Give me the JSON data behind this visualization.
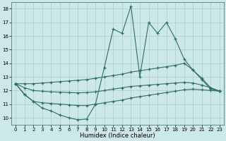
{
  "xlabel": "Humidex (Indice chaleur)",
  "x": [
    0,
    1,
    2,
    3,
    4,
    5,
    6,
    7,
    8,
    9,
    10,
    11,
    12,
    13,
    14,
    15,
    16,
    17,
    18,
    19,
    20,
    21,
    22,
    23
  ],
  "line_jagged": [
    12.5,
    11.7,
    11.2,
    10.7,
    10.5,
    10.2,
    10.0,
    9.85,
    9.9,
    11.0,
    13.7,
    16.5,
    16.2,
    18.2,
    13.0,
    17.0,
    16.2,
    17.0,
    15.8,
    14.3,
    13.5,
    12.8,
    12.1,
    11.95
  ],
  "line_upper": [
    12.5,
    12.5,
    12.5,
    12.55,
    12.6,
    12.65,
    12.7,
    12.75,
    12.8,
    12.9,
    13.0,
    13.1,
    13.2,
    13.35,
    13.45,
    13.55,
    13.65,
    13.75,
    13.85,
    14.0,
    13.5,
    12.9,
    12.2,
    11.95
  ],
  "line_mid": [
    12.5,
    12.2,
    12.0,
    11.95,
    11.9,
    11.88,
    11.85,
    11.83,
    11.85,
    11.9,
    12.0,
    12.1,
    12.2,
    12.3,
    12.35,
    12.4,
    12.45,
    12.5,
    12.55,
    12.6,
    12.55,
    12.4,
    12.2,
    11.95
  ],
  "line_lower": [
    12.5,
    11.7,
    11.2,
    11.1,
    11.05,
    11.0,
    10.95,
    10.9,
    10.9,
    11.0,
    11.1,
    11.2,
    11.3,
    11.45,
    11.55,
    11.65,
    11.75,
    11.85,
    11.95,
    12.05,
    12.1,
    12.05,
    12.0,
    11.95
  ],
  "bg_color": "#cde8e8",
  "line_color": "#2e6e68",
  "grid_color": "#aacece",
  "xlim": [
    -0.5,
    23.5
  ],
  "ylim": [
    9.5,
    18.5
  ],
  "yticks": [
    10,
    11,
    12,
    13,
    14,
    15,
    16,
    17,
    18
  ],
  "xticks": [
    0,
    1,
    2,
    3,
    4,
    5,
    6,
    7,
    8,
    9,
    10,
    11,
    12,
    13,
    14,
    15,
    16,
    17,
    18,
    19,
    20,
    21,
    22,
    23
  ]
}
